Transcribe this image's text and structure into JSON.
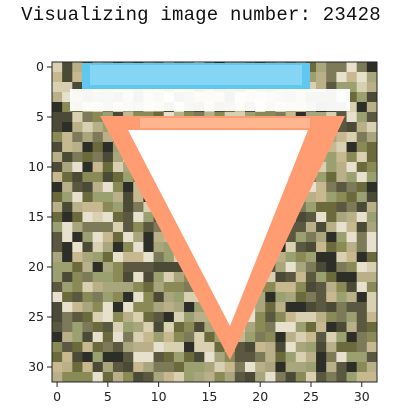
{
  "title": "Visualizing image number: 23428",
  "image_content": {
    "subject": "traffic-sign",
    "description_colors": {
      "sign_border": "#ff9a70",
      "sign_fill": "#ffffff",
      "top_band": "#66ccf2"
    },
    "grid_size": [
      32,
      32
    ]
  },
  "axes": {
    "x_ticks": [
      "0",
      "5",
      "10",
      "15",
      "20",
      "25",
      "30"
    ],
    "y_ticks": [
      "0",
      "5",
      "10",
      "15",
      "20",
      "25",
      "30"
    ]
  }
}
